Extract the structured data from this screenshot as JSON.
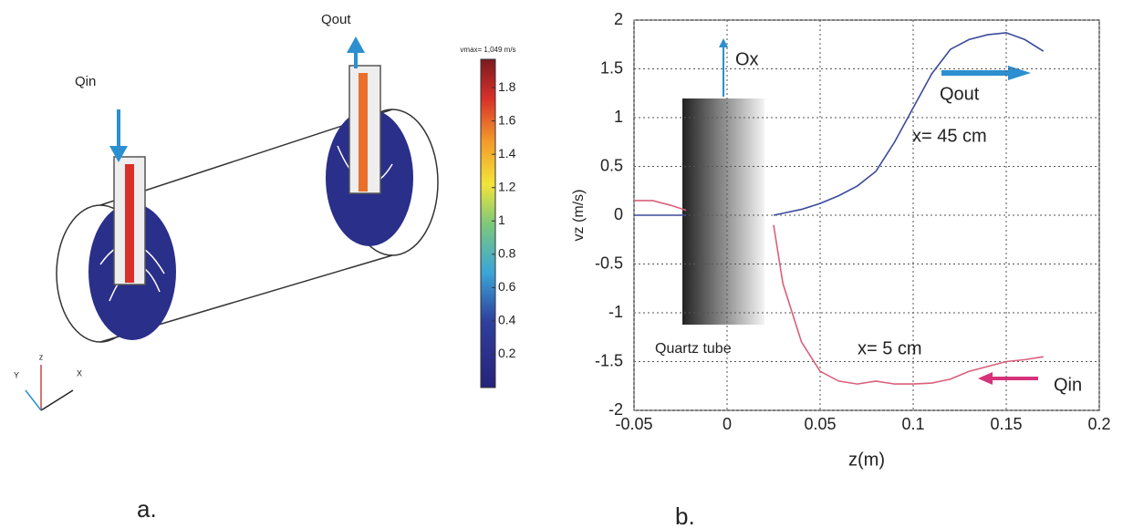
{
  "chart_data": {
    "type": "line",
    "x_label": "z(m)",
    "y_label": "vz (m/s)",
    "x": [
      -0.05,
      -0.04,
      -0.03,
      -0.022,
      0,
      0.025,
      0.03,
      0.04,
      0.05,
      0.06,
      0.07,
      0.08,
      0.09,
      0.1,
      0.11,
      0.12,
      0.13,
      0.14,
      0.15,
      0.16,
      0.17
    ],
    "series": [
      {
        "name": "x= 45 cm",
        "color": "#3b4a9a",
        "values": [
          0,
          0,
          0,
          0,
          null,
          0,
          0.02,
          0.06,
          0.12,
          0.2,
          0.3,
          0.45,
          0.75,
          1.1,
          1.45,
          1.7,
          1.8,
          1.85,
          1.87,
          1.8,
          1.68
        ]
      },
      {
        "name": "x= 5 cm",
        "color": "#d9607a",
        "values": [
          0.15,
          0.15,
          0.1,
          0.05,
          null,
          -0.1,
          -0.7,
          -1.3,
          -1.6,
          -1.7,
          -1.73,
          -1.7,
          -1.73,
          -1.73,
          -1.72,
          -1.68,
          -1.6,
          -1.55,
          -1.5,
          -1.48,
          -1.45
        ]
      }
    ],
    "xlim": [
      -0.05,
      0.2
    ],
    "xticks": [
      -0.05,
      0,
      0.05,
      0.1,
      0.15,
      0.2
    ],
    "ylim": [
      -2,
      2
    ],
    "yticks": [
      -2,
      -1.5,
      -1,
      -0.5,
      0,
      0.5,
      1,
      1.5,
      2
    ],
    "grid": true,
    "annotations": {
      "ox": "Ox",
      "qout": "Qout",
      "qin": "Qin",
      "tube": "Quartz tube"
    }
  },
  "panel_a": {
    "label": "a.",
    "qin": "Qin",
    "qout": "Qout",
    "axis_z": "z",
    "axis_y": "Y",
    "axis_x": "X",
    "colorbar": {
      "title": "vmax= 1,049 m/s",
      "lim": [
        0,
        1.97
      ],
      "ticks": [
        0.2,
        0.4,
        0.6,
        0.8,
        1,
        1.2,
        1.4,
        1.6,
        1.8
      ]
    }
  },
  "panel_b": {
    "label": "b."
  }
}
